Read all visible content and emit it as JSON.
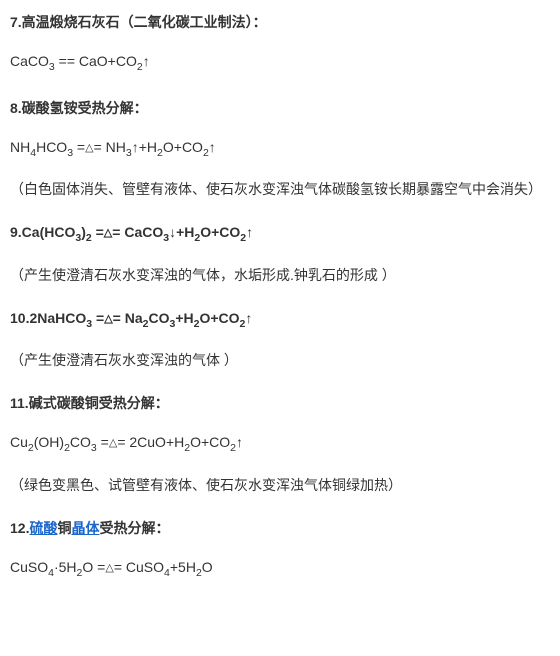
{
  "entries": [
    {
      "heading_html": "7.高温煅烧石灰石（二氧化碳工业制法）：",
      "equation_html": "CaCO<span class='sub'>3</span> == CaO+CO<span class='sub'>2</span>↑",
      "note_html": ""
    },
    {
      "heading_html": "8.碳酸氢铵受热分解：",
      "equation_html": "NH<span class='sub'>4</span>HCO<span class='sub'>3</span> =<span class='delta'>△</span>= NH<span class='sub'>3</span>↑+H<span class='sub'>2</span>O+CO<span class='sub'>2</span>↑",
      "note_html": "（白色固体消失、管壁有液体、使石灰水变浑浊气体碳酸氢铵长期暴露空气中会消失）"
    },
    {
      "heading_html": "9.Ca(HCO<span class='sub'>3</span>)<span class='sub'>2</span> =<span class='delta'>△</span>= CaCO<span class='sub'>3</span>↓+H<span class='sub'>2</span>O+CO<span class='sub'>2</span>↑",
      "equation_html": "",
      "note_html": "（产生使澄清石灰水变浑浊的气体，水垢形成.钟乳石的形成 ）"
    },
    {
      "heading_html": "10.2NaHCO<span class='sub'>3</span> =<span class='delta'>△</span>= Na<span class='sub'>2</span>CO<span class='sub'>3</span>+H<span class='sub'>2</span>O+CO<span class='sub'>2</span>↑",
      "equation_html": "",
      "note_html": "（产生使澄清石灰水变浑浊的气体 ）"
    },
    {
      "heading_html": "11.碱式碳酸铜受热分解：",
      "equation_html": "Cu<span class='sub'>2</span>(OH)<span class='sub'>2</span>CO<span class='sub'>3</span> =<span class='delta'>△</span>= 2CuO+H<span class='sub'>2</span>O+CO<span class='sub'>2</span>↑",
      "note_html": "（绿色变黑色、试管壁有液体、使石灰水变浑浊气体铜绿加热）"
    },
    {
      "heading_html": "12.<span class='link'>硫酸</span>铜<span class='link'>晶体</span>受热分解：",
      "equation_html": "CuSO<span class='sub'>4</span>·5H<span class='sub'>2</span>O =<span class='delta'>△</span>= CuSO<span class='sub'>4</span>+5H<span class='sub'>2</span>O",
      "note_html": ""
    }
  ]
}
